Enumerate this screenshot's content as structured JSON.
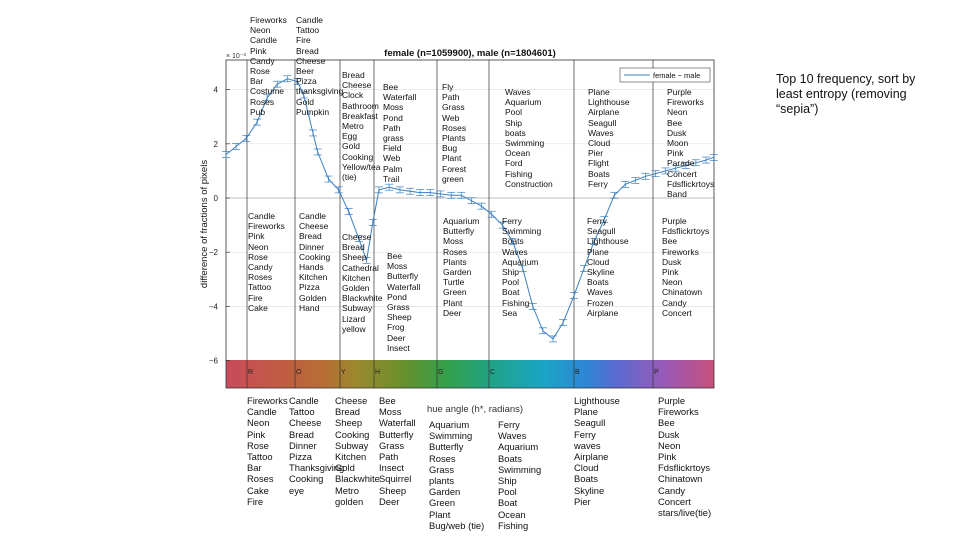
{
  "note": "Top 10 frequency, sort by least entropy (removing “sepia”)",
  "chart_data": {
    "type": "line",
    "title": "female (n=1059900), male (n=1804601)",
    "xlabel": "hue angle (h*, radians)",
    "ylabel": "difference of fractions of pixels",
    "exponent_label": "× 10⁻³",
    "xlim": [
      0,
      6.2832
    ],
    "ylim": [
      -6.4,
      5.4
    ],
    "yticks": [
      "4",
      "2",
      "0",
      "−2",
      "−4",
      "−6"
    ],
    "ytick_values": [
      4,
      2,
      0,
      -2,
      -4,
      -6
    ],
    "grid": true,
    "legend_position": "top-right",
    "series": [
      {
        "name": "female − male",
        "color": "#3b7fc0",
        "x": [
          0.0,
          0.13,
          0.26,
          0.4,
          0.53,
          0.66,
          0.79,
          0.92,
          1.0,
          1.12,
          1.18,
          1.32,
          1.45,
          1.58,
          1.71,
          1.81,
          1.89,
          1.97,
          2.1,
          2.24,
          2.37,
          2.5,
          2.63,
          2.76,
          2.9,
          3.03,
          3.16,
          3.29,
          3.42,
          3.56,
          3.69,
          3.82,
          3.95,
          4.08,
          4.21,
          4.34,
          4.48,
          4.61,
          4.74,
          4.87,
          5.0,
          5.14,
          5.27,
          5.4,
          5.53,
          5.66,
          5.79,
          5.92,
          6.05,
          6.18,
          6.28
        ],
        "y": [
          1.6,
          1.9,
          2.2,
          2.8,
          3.7,
          4.2,
          4.4,
          4.3,
          3.8,
          2.4,
          1.7,
          0.7,
          0.3,
          -0.5,
          -1.5,
          -2.3,
          -0.9,
          0.3,
          0.4,
          0.3,
          0.25,
          0.2,
          0.2,
          0.15,
          0.1,
          0.1,
          -0.1,
          -0.3,
          -0.6,
          -1.0,
          -1.6,
          -2.6,
          -4.0,
          -4.9,
          -5.2,
          -4.6,
          -3.6,
          -2.6,
          -1.6,
          -0.8,
          0.1,
          0.5,
          0.65,
          0.8,
          0.9,
          1.0,
          1.1,
          1.2,
          1.3,
          1.4,
          1.5
        ]
      }
    ],
    "hue_bands": [
      {
        "label": "R",
        "color": "#c04a5a"
      },
      {
        "label": "O",
        "color": "#c2603e"
      },
      {
        "label": "Y",
        "color": "#9a8a2e"
      },
      {
        "label": "H",
        "color": "#6a8f2c"
      },
      {
        "label": "G",
        "color": "#2ea35a"
      },
      {
        "label": "C",
        "color": "#1aa0c0"
      },
      {
        "label": "B",
        "color": "#3a6fd0"
      },
      {
        "label": "P",
        "color": "#b455a8"
      }
    ],
    "top_lists": [
      [
        "Fireworks",
        "Neon",
        "Candle",
        "Pink",
        "Candy",
        "Rose",
        "Bar",
        "Costume",
        "Roses",
        "Pub"
      ],
      [
        "Candle",
        "Tattoo",
        "Fire",
        "Bread",
        "Cheese",
        "Beer",
        "Pizza",
        "thanksgiving",
        "Gold",
        "Pumpkin"
      ],
      [
        "Bread",
        "Cheese",
        "Clock",
        "Bathroom",
        "Breakfast",
        "Metro",
        "Egg",
        "Gold",
        "Cooking",
        "Yellow/tea",
        "(tie)"
      ],
      [
        "Bee",
        "Waterfall",
        "Moss",
        "Pond",
        "Path",
        "grass",
        "Field",
        "Web",
        "Palm",
        "Trail"
      ],
      [
        "Fly",
        "Path",
        "Grass",
        "Web",
        "Roses",
        "Plants",
        "Bug",
        "Plant",
        "Forest",
        "green"
      ],
      [
        "Waves",
        "Aquarium",
        "Pool",
        "Ship",
        "boats",
        "Swimming",
        "Ocean",
        "Ford",
        "Fishing",
        "Construction"
      ],
      [
        "Plane",
        "Lighthouse",
        "Airplane",
        "Seagull",
        "Waves",
        "Cloud",
        "Pier",
        "Flight",
        "Boats",
        "Ferry"
      ],
      [
        "Purple",
        "Fireworks",
        "Neon",
        "Bee",
        "Dusk",
        "Moon",
        "Pink",
        "Parade",
        "Concert",
        "Fdsflickrtoys",
        "Band"
      ]
    ],
    "mid_lists": [
      [
        "Candle",
        "Fireworks",
        "Pink",
        "Neon",
        "Rose",
        "Candy",
        "Roses",
        "Tattoo",
        "Fire",
        "Cake"
      ],
      [
        "Candle",
        "Cheese",
        "Bread",
        "Dinner",
        "Cooking",
        "Hands",
        "Kitchen",
        "Pizza",
        "Golden",
        "Hand"
      ],
      [
        "Cheese",
        "Bread",
        "Sheep",
        "Cathedral",
        "Kitchen",
        "Golden",
        "Blackwhite",
        "Subway",
        "Lizard",
        "yellow"
      ],
      [
        "Bee",
        "Moss",
        "Butterfly",
        "Waterfall",
        "Pond",
        "Grass",
        "Sheep",
        "Frog",
        "Deer",
        "Insect"
      ],
      [
        "Aquarium",
        "Butterfly",
        "Moss",
        "Roses",
        "Plants",
        "Garden",
        "Turtle",
        "Green",
        "Plant",
        "Deer"
      ],
      [
        "Ferry",
        "Swimming",
        "Boats",
        "Waves",
        "Aquarium",
        "Ship",
        "Pool",
        "Boat",
        "Fishing",
        "Sea"
      ],
      [
        "Ferry",
        "Seagull",
        "Lighthouse",
        "Plane",
        "Cloud",
        "Skyline",
        "Boats",
        "Waves",
        "Frozen",
        "Airplane"
      ],
      [
        "Purple",
        "Fdsflickrtoys",
        "Bee",
        "Fireworks",
        "Dusk",
        "Pink",
        "Neon",
        "Chinatown",
        "Candy",
        "Concert"
      ]
    ],
    "bottom_lists": [
      [
        "Fireworks",
        "Candle",
        "Neon",
        "Pink",
        "Rose",
        "Tattoo",
        "Bar",
        "Roses",
        "Cake",
        "Fire"
      ],
      [
        "Candle",
        "Tattoo",
        "Cheese",
        "Bread",
        "Dinner",
        "Pizza",
        "Thanksgiving",
        "Cooking",
        "eye"
      ],
      [
        "Cheese",
        "Bread",
        "Sheep",
        "Cooking",
        "Subway",
        "Kitchen",
        "Gold",
        "Blackwhite",
        "Metro",
        "golden"
      ],
      [
        "Bee",
        "Moss",
        "Waterfall",
        "Butterfly",
        "Grass",
        "Path",
        "Insect",
        "Squirrel",
        "Sheep",
        "Deer"
      ],
      [
        "Aquarium",
        "Swimming",
        "Butterfly",
        "Roses",
        "Grass",
        "plants",
        "Garden",
        "Green",
        "Plant",
        "Bug/web (tie)"
      ],
      [
        "Ferry",
        "Waves",
        "Aquarium",
        "Boats",
        "Swimming",
        "Ship",
        "Pool",
        "Boat",
        "Ocean",
        "Fishing"
      ],
      [
        "Lighthouse",
        "Plane",
        "Seagull",
        "Ferry",
        "waves",
        "Airplane",
        "Cloud",
        "Boats",
        "Skyline",
        "Pier"
      ],
      [
        "Purple",
        "Fireworks",
        "Bee",
        "Dusk",
        "Neon",
        "Pink",
        "Fdsflickrtoys",
        "Chinatown",
        "Candy",
        "Concert",
        "stars/live(tie)"
      ]
    ]
  }
}
